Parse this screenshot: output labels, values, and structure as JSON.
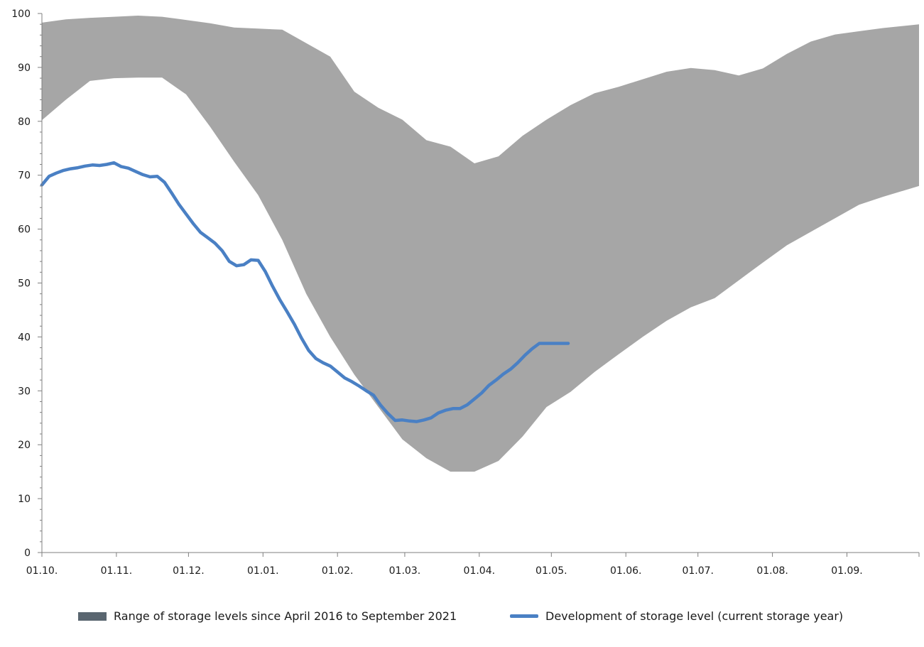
{
  "colors": {
    "range_fill": "#a6a6a6",
    "range_legend": "#5a6670",
    "line": "#4a80c4",
    "axis": "#7f7f7f",
    "text": "#1a1a1a"
  },
  "legend": {
    "range_label": "Range of storage levels since April 2016 to September 2021",
    "line_label": "Development of storage level (current storage year)"
  },
  "chart_data": {
    "type": "area",
    "ylim": [
      0,
      100
    ],
    "y_ticks": [
      "0",
      "10",
      "20",
      "30",
      "40",
      "50",
      "60",
      "70",
      "80",
      "90",
      "100"
    ],
    "x_ticks": [
      "01.10.",
      "01.11.",
      "01.12.",
      "01.01.",
      "01.02.",
      "01.03.",
      "01.04.",
      "01.05.",
      "01.06.",
      "01.07.",
      "01.08.",
      "01.09."
    ],
    "x_unit": "days since 01.10.",
    "x_max": 365,
    "series": [
      {
        "name": "Range of storage levels since April 2016 to September 2021",
        "type": "range",
        "x": [
          0,
          10,
          20,
          30,
          40,
          50,
          60,
          70,
          80,
          90,
          100,
          110,
          120,
          130,
          140,
          150,
          160,
          170,
          180,
          190,
          200,
          210,
          220,
          230,
          240,
          250,
          260,
          270,
          280,
          290,
          300,
          310,
          320,
          330,
          340,
          350,
          365
        ],
        "upper": [
          98.3,
          98.9,
          99.2,
          99.4,
          99.6,
          99.4,
          98.8,
          98.2,
          97.4,
          97.2,
          97.0,
          94.5,
          92.0,
          85.5,
          82.5,
          80.3,
          76.5,
          75.3,
          72.2,
          73.5,
          77.3,
          80.3,
          83.0,
          85.2,
          86.4,
          87.8,
          89.2,
          89.9,
          89.5,
          88.5,
          89.8,
          92.5,
          94.8,
          96.1,
          96.7,
          97.3,
          98.0
        ],
        "lower": [
          80.2,
          84.0,
          87.5,
          88.0,
          88.1,
          88.1,
          85.0,
          79.0,
          72.5,
          66.3,
          58.0,
          48.0,
          40.0,
          33.0,
          27.0,
          21.0,
          17.5,
          15.0,
          15.0,
          17.0,
          21.5,
          27.0,
          29.8,
          33.5,
          36.8,
          40.0,
          43.0,
          45.5,
          47.2,
          50.5,
          53.8,
          57.0,
          59.5,
          62.0,
          64.5,
          66.0,
          68.0
        ]
      },
      {
        "name": "Development of storage level (current storage year)",
        "type": "line",
        "x": [
          0,
          3,
          6,
          9,
          12,
          15,
          18,
          21,
          24,
          27,
          30,
          33,
          36,
          39,
          42,
          45,
          48,
          51,
          54,
          57,
          60,
          63,
          66,
          69,
          72,
          75,
          78,
          81,
          84,
          87,
          90,
          93,
          96,
          99,
          102,
          105,
          108,
          111,
          114,
          117,
          120,
          123,
          126,
          129,
          132,
          135,
          138,
          141,
          144,
          147,
          150,
          153,
          156,
          159,
          162,
          165,
          168,
          171,
          174,
          177,
          180,
          183,
          186,
          189,
          192,
          195,
          198,
          201,
          204,
          207,
          210,
          213,
          216,
          219
        ],
        "y": [
          68.2,
          69.8,
          70.4,
          70.9,
          71.2,
          71.4,
          71.7,
          71.9,
          71.8,
          72.0,
          72.3,
          71.6,
          71.3,
          70.7,
          70.1,
          69.7,
          69.8,
          68.7,
          66.7,
          64.6,
          62.8,
          61.0,
          59.4,
          58.4,
          57.4,
          56.0,
          54.0,
          53.2,
          53.4,
          54.3,
          54.2,
          52.1,
          49.4,
          46.9,
          44.7,
          42.4,
          39.8,
          37.5,
          36.0,
          35.2,
          34.6,
          33.5,
          32.4,
          31.7,
          30.9,
          30.0,
          29.2,
          27.3,
          25.8,
          24.5,
          24.6,
          24.4,
          24.3,
          24.6,
          25.0,
          25.9,
          26.4,
          26.7,
          26.7,
          27.4,
          28.5,
          29.6,
          31.0,
          32.0,
          33.1,
          34.0,
          35.2,
          36.6,
          37.8,
          38.8,
          38.8,
          38.8,
          38.8,
          38.8
        ]
      }
    ]
  }
}
